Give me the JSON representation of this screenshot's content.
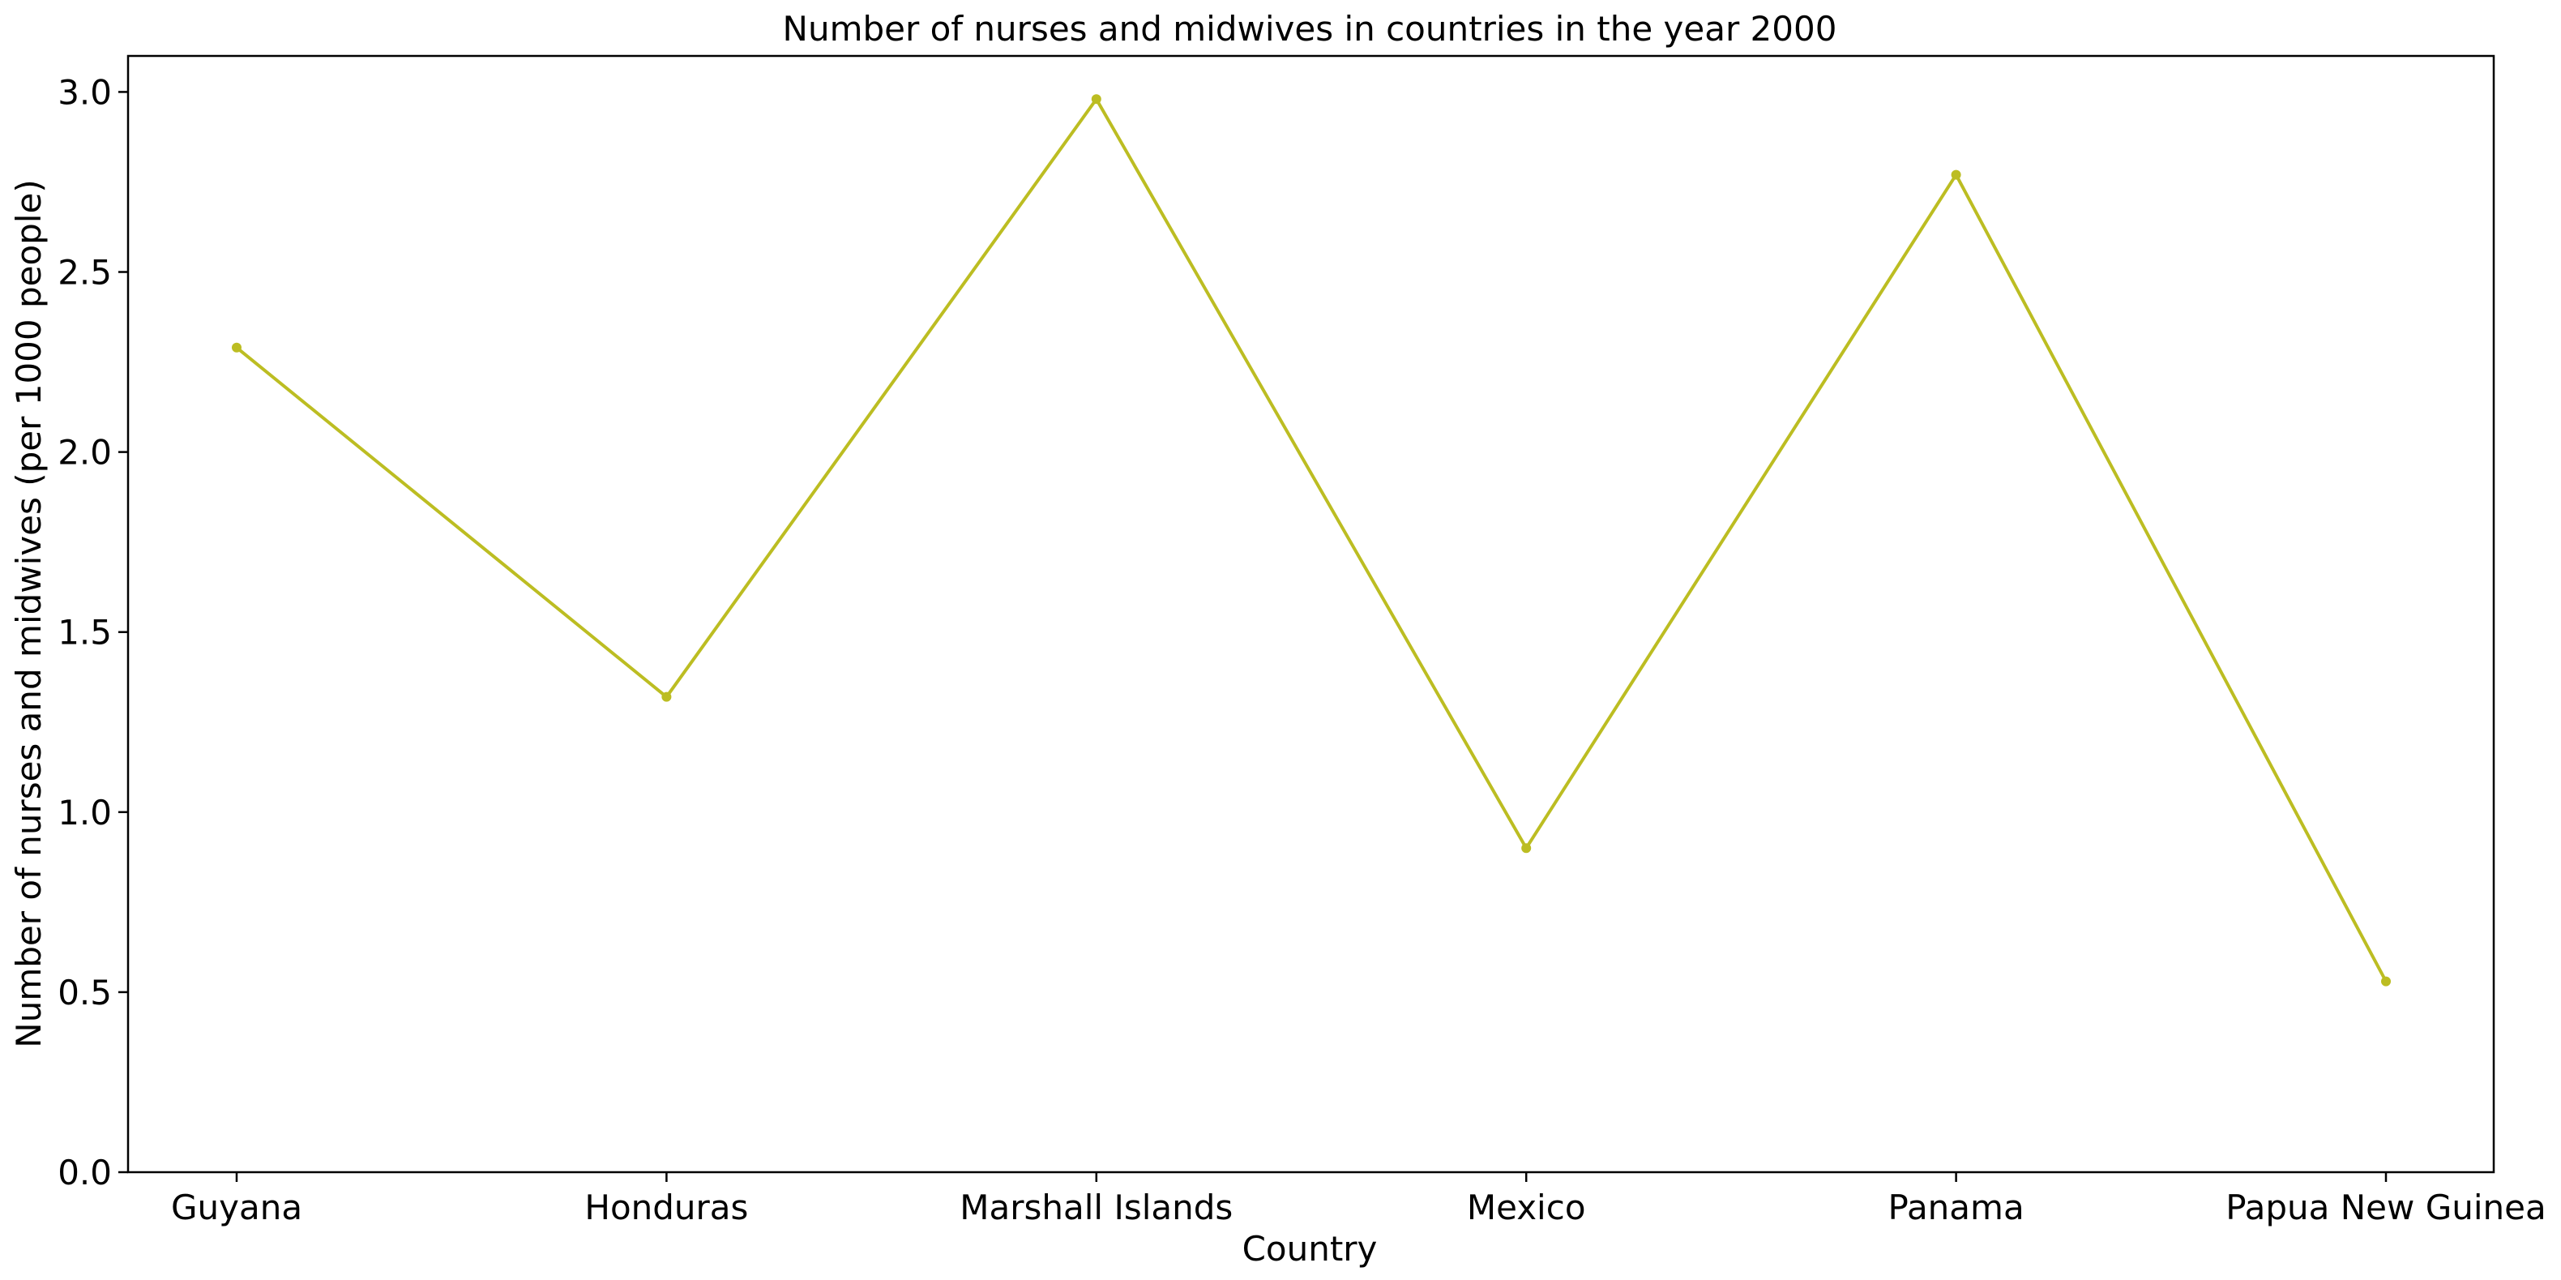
{
  "chart_data": {
    "type": "line",
    "title": "Number of nurses and midwives in countries in the year 2000",
    "xlabel": "Country",
    "ylabel": "Number of nurses and midwives (per 1000 people)",
    "categories": [
      "Guyana",
      "Honduras",
      "Marshall Islands",
      "Mexico",
      "Panama",
      "Papua New Guinea"
    ],
    "series": [
      {
        "values": [
          2.29,
          1.32,
          2.98,
          0.9,
          2.77,
          0.53
        ],
        "color": "#bcbd22",
        "marker": "circle"
      }
    ],
    "ylim": [
      0,
      3.1
    ],
    "yticks": [
      0.0,
      0.5,
      1.0,
      1.5,
      2.0,
      2.5,
      3.0
    ],
    "ytick_labels": [
      "0.0",
      "0.5",
      "1.0",
      "1.5",
      "2.0",
      "2.5",
      "3.0"
    ],
    "grid": false,
    "legend": "none"
  }
}
